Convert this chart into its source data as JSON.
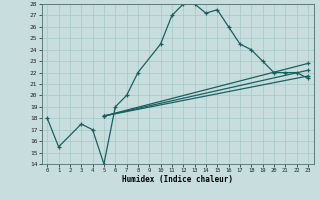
{
  "xlabel": "Humidex (Indice chaleur)",
  "bg_color": "#c8dede",
  "grid_color": "#a8c8c8",
  "line_color": "#1a6060",
  "xlim": [
    -0.5,
    23.5
  ],
  "ylim": [
    14,
    28
  ],
  "xticks": [
    0,
    1,
    2,
    3,
    4,
    5,
    6,
    7,
    8,
    9,
    10,
    11,
    12,
    13,
    14,
    15,
    16,
    17,
    18,
    19,
    20,
    21,
    22,
    23
  ],
  "yticks": [
    14,
    15,
    16,
    17,
    18,
    19,
    20,
    21,
    22,
    23,
    24,
    25,
    26,
    27,
    28
  ],
  "line1_x": [
    0,
    1,
    3,
    4,
    5,
    6,
    7,
    8,
    10,
    11,
    12,
    13,
    14,
    15,
    16,
    17,
    18,
    19,
    20,
    21,
    22,
    23
  ],
  "line1_y": [
    18.0,
    15.5,
    17.5,
    17.0,
    14.0,
    19.0,
    20.0,
    22.0,
    24.5,
    27.0,
    28.0,
    28.0,
    27.2,
    27.5,
    26.0,
    24.5,
    24.0,
    23.0,
    22.0,
    22.0,
    22.0,
    21.5
  ],
  "line2_x": [
    5,
    23
  ],
  "line2_y": [
    18.2,
    22.8
  ],
  "line3_x": [
    5,
    23
  ],
  "line3_y": [
    18.2,
    22.2
  ],
  "line4_x": [
    5,
    23
  ],
  "line4_y": [
    18.2,
    21.7
  ]
}
